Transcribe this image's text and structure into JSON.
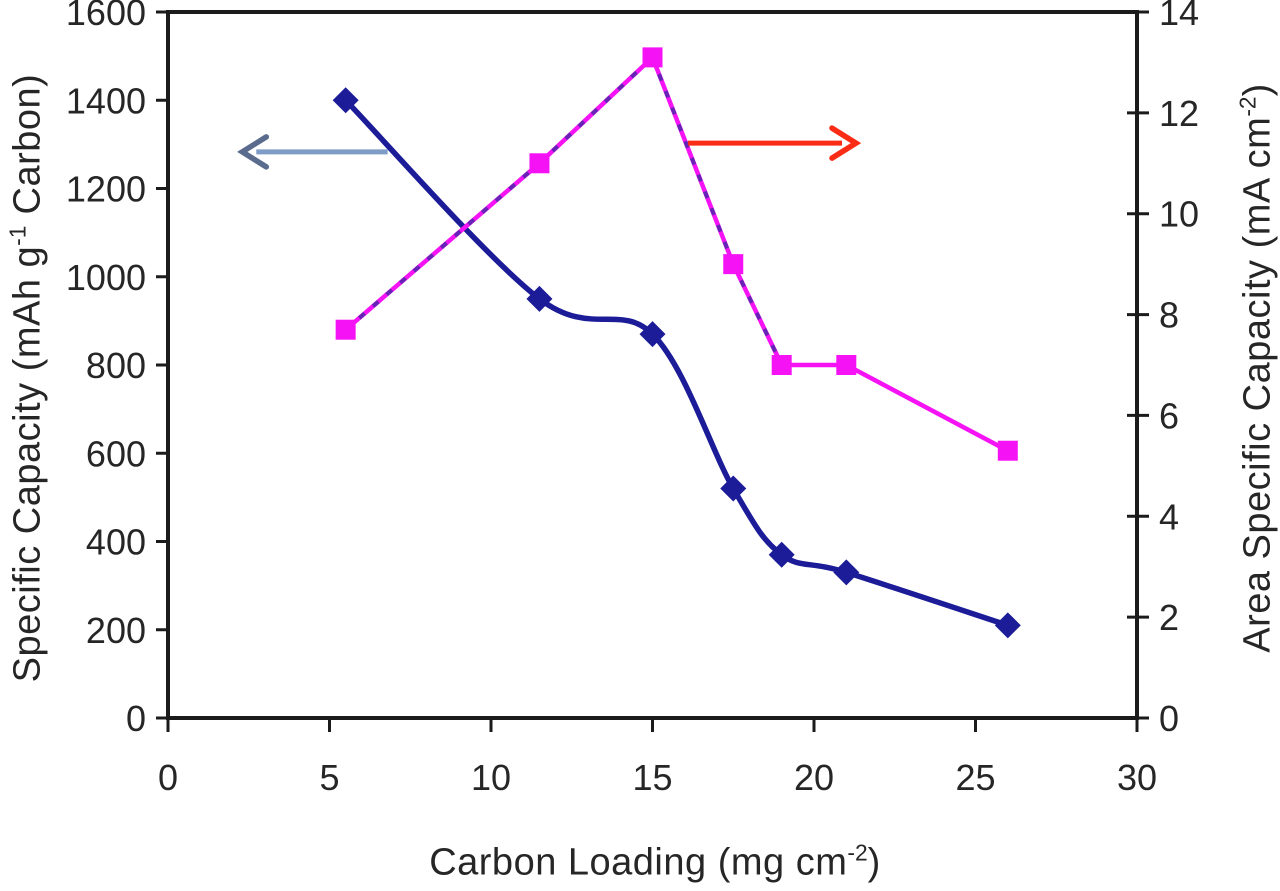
{
  "chart_data": {
    "type": "line",
    "title": "",
    "grid": false,
    "legend": false,
    "x": [
      5.5,
      11.5,
      15,
      17.5,
      19,
      21,
      26
    ],
    "x_axis": {
      "min": 0,
      "max": 30,
      "tick_step": 5,
      "tick_labels": [
        "0",
        "5",
        "10",
        "15",
        "20",
        "25",
        "30"
      ],
      "title_main": "Carbon Loading (mg cm",
      "title_sup": "-2",
      "title_end": ")"
    },
    "left_axis": {
      "min": 0,
      "max": 1600,
      "tick_step": 200,
      "tick_labels": [
        "0",
        "200",
        "400",
        "600",
        "800",
        "1000",
        "1200",
        "1400",
        "1600"
      ],
      "title_main": "Specific Capacity (mAh g",
      "title_sup": "-1",
      "title_end": " Carbon)"
    },
    "right_axis": {
      "min": 0,
      "max": 14,
      "tick_step": 2,
      "tick_labels": [
        "0",
        "2",
        "4",
        "6",
        "8",
        "10",
        "12",
        "14"
      ],
      "title_main": "Area Specific Capacity (mA cm",
      "title_sup": "-2",
      "title_end": ")"
    },
    "series": [
      {
        "name": "Specific Capacity",
        "axis": "left",
        "values": [
          1400,
          950,
          870,
          520,
          370,
          330,
          210
        ],
        "color": "#1c1c99",
        "marker": "diamond",
        "marker_size": 13,
        "line_width": 5.5,
        "smoothed": true
      },
      {
        "name": "Area Specific Capacity",
        "axis": "right",
        "values": [
          7.7,
          11.0,
          13.1,
          9.0,
          7.0,
          7.0,
          5.3
        ],
        "color": "#f513f5",
        "marker": "square",
        "marker_size": 10,
        "line_width": 4.5,
        "smoothed": false,
        "dashed_overlay_segments": [
          0,
          1,
          2,
          3
        ],
        "overlay_color": "#2a2a9a"
      }
    ],
    "annotations": [
      {
        "name": "left-axis-arrow",
        "direction": "left",
        "axis": "left",
        "y": 1283,
        "x_from": 6.8,
        "x_to": 2.3,
        "line_color": "#7e9cc6",
        "head_color": "#5a6b8e"
      },
      {
        "name": "right-axis-arrow",
        "direction": "right",
        "axis": "right",
        "y": 11.4,
        "x_from": 16.1,
        "x_to": 21.3,
        "line_color": "#fb2c16",
        "head_color": "#fb2c16"
      }
    ],
    "frame_color": "#1b1b1b",
    "tick_label_color": "#262626"
  }
}
